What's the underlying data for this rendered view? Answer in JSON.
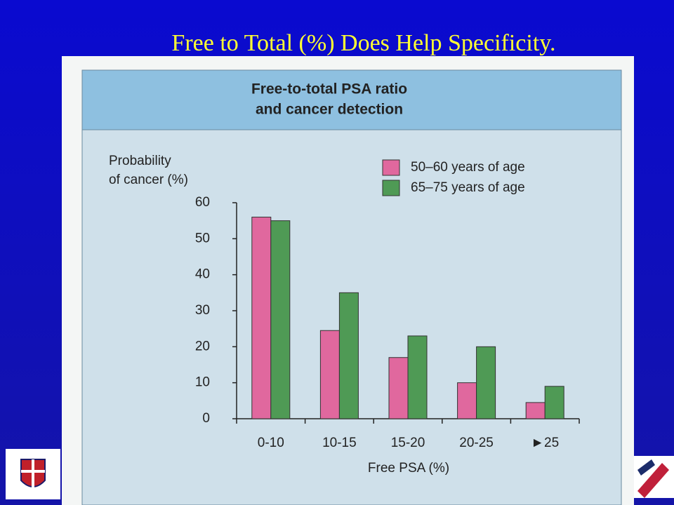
{
  "slide_title": "Free to Total (%) Does Help Specificity.",
  "chart_data": {
    "type": "bar",
    "title": [
      "Free-to-total PSA ratio",
      "and cancer detection"
    ],
    "y_label": [
      "Probability",
      "of cancer (%)"
    ],
    "x_label": "Free PSA (%)",
    "categories": [
      "0-10",
      "10-15",
      "15-20",
      "20-25",
      "►25"
    ],
    "series": [
      {
        "name": "50–60 years of age",
        "color": "#e0689e",
        "values": [
          56,
          24.5,
          17,
          10,
          4.5
        ]
      },
      {
        "name": "65–75 years of age",
        "color": "#4f9a55",
        "values": [
          55,
          35,
          23,
          20,
          9
        ]
      }
    ],
    "ylim": [
      0,
      60
    ],
    "yticks": [
      0,
      10,
      20,
      30,
      40,
      50,
      60
    ],
    "grid": false
  }
}
